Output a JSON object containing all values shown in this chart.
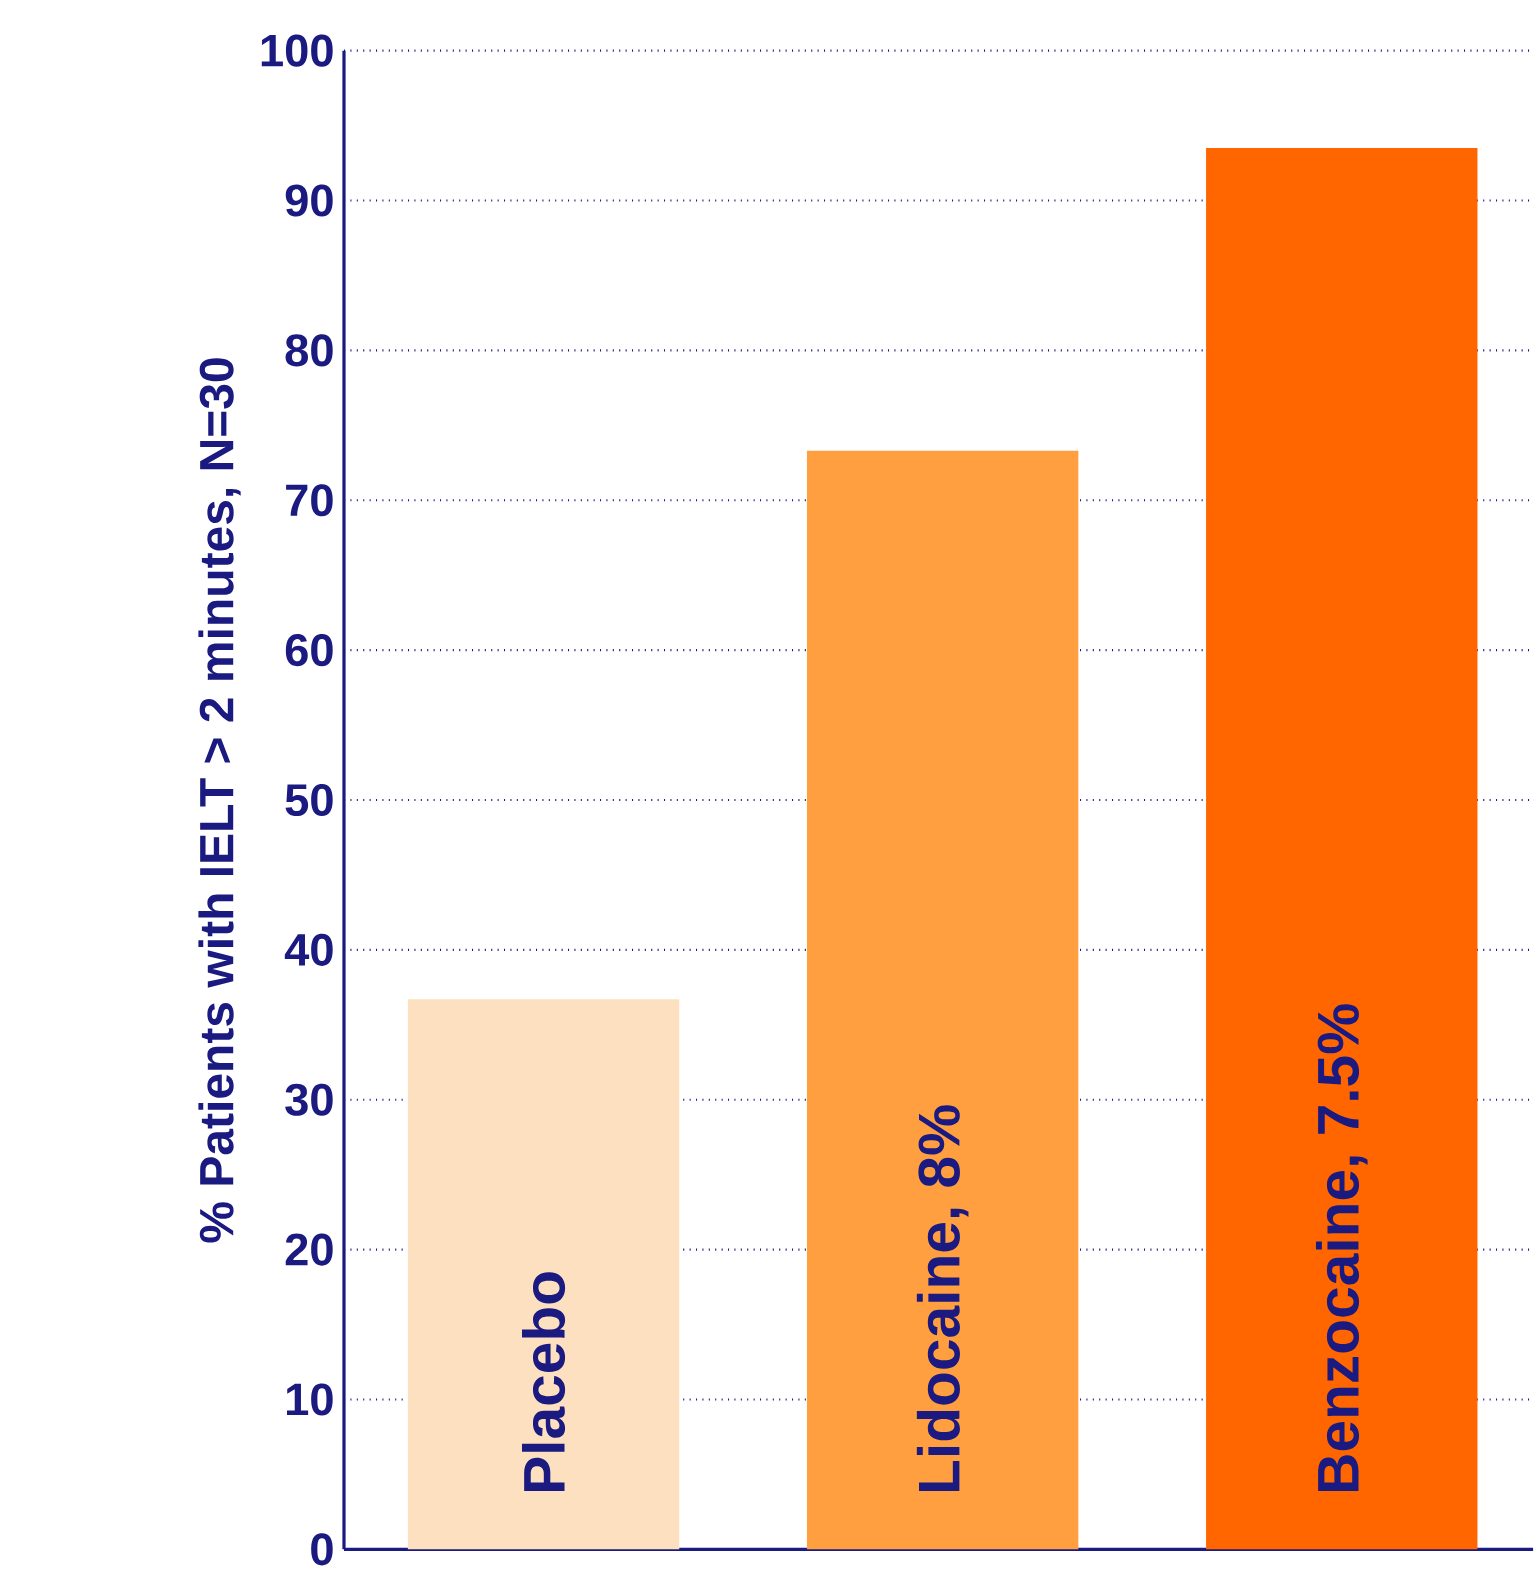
{
  "chart_data": {
    "type": "bar",
    "categories": [
      "Placebo",
      "Lidocaine, 8%",
      "Benzocaine, 7.5%"
    ],
    "values": [
      36.7,
      73.3,
      93.5
    ],
    "colors": [
      "#fde0c0",
      "#ff9f40",
      "#ff6600"
    ],
    "ylabel": "% Patients with IELT > 2 minutes, N=30",
    "ylim": [
      0,
      100
    ],
    "yticks": [
      0,
      10,
      20,
      30,
      40,
      50,
      60,
      70,
      80,
      90,
      100
    ],
    "grid": "y"
  }
}
